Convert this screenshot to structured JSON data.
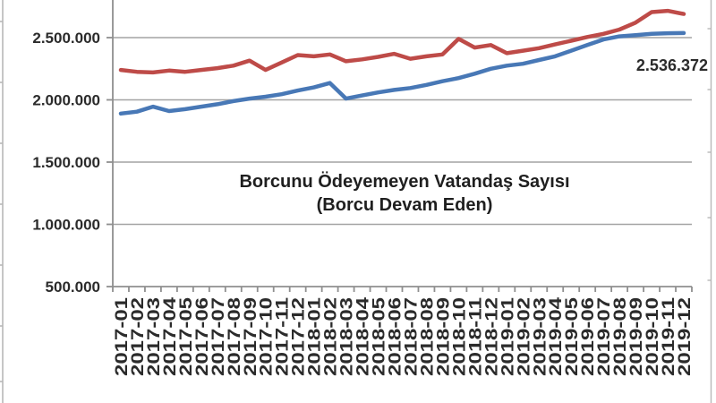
{
  "chart_data": {
    "type": "line",
    "title": "Borcunu Ödeyemeyen Vatandaş Sayısı",
    "subtitle": "(Borcu Devam Eden)",
    "legend": "none",
    "grid": true,
    "categories": [
      "2017-01",
      "2017-02",
      "2017-03",
      "2017-04",
      "2017-05",
      "2017-06",
      "2017-07",
      "2017-08",
      "2017-09",
      "2017-10",
      "2017-11",
      "2017-12",
      "2018-01",
      "2018-02",
      "2018-03",
      "2018-04",
      "2018-05",
      "2018-06",
      "2018-07",
      "2018-08",
      "2018-09",
      "2018-10",
      "2018-11",
      "2018-12",
      "2019-01",
      "2019-02",
      "2019-03",
      "2019-04",
      "2019-05",
      "2019-06",
      "2019-07",
      "2019-08",
      "2019-09",
      "2019-10",
      "2019-11",
      "2019-12"
    ],
    "series": [
      {
        "name": "red-line",
        "color": "#BE4B48",
        "values": [
          2240000,
          2225000,
          2220000,
          2235000,
          2225000,
          2240000,
          2255000,
          2275000,
          2315000,
          2240000,
          2300000,
          2360000,
          2350000,
          2365000,
          2310000,
          2325000,
          2345000,
          2370000,
          2330000,
          2350000,
          2365000,
          2490000,
          2420000,
          2440000,
          2375000,
          2395000,
          2415000,
          2445000,
          2475000,
          2505000,
          2530000,
          2565000,
          2620000,
          2705000,
          2715000,
          2690000
        ]
      },
      {
        "name": "blue-line",
        "color": "#4878B6",
        "values": [
          1890000,
          1905000,
          1945000,
          1910000,
          1925000,
          1945000,
          1965000,
          1990000,
          2010000,
          2025000,
          2045000,
          2075000,
          2100000,
          2135000,
          2010000,
          2035000,
          2060000,
          2080000,
          2095000,
          2120000,
          2150000,
          2175000,
          2210000,
          2250000,
          2275000,
          2290000,
          2320000,
          2350000,
          2395000,
          2440000,
          2485000,
          2510000,
          2520000,
          2530000,
          2535000,
          2536372
        ]
      }
    ],
    "annotation": {
      "text": "2.536.372",
      "series": "blue-line",
      "category": "2019-12",
      "value": 2536372
    },
    "y_axis": {
      "tick_labels": [
        "2.500.000",
        "2.000.000",
        "1.500.000",
        "1.000.000",
        "500.000"
      ],
      "tick_values": [
        2500000,
        2000000,
        1500000,
        1000000,
        500000
      ],
      "min": 500000,
      "max_visible": 2800000
    },
    "colors": {
      "gridline": "#a3a3a3",
      "axis": "#8f8f8f",
      "border_artifact": "#b8b8b8",
      "text": "#2b2b2b",
      "title_text": "#1f1f1f"
    }
  }
}
